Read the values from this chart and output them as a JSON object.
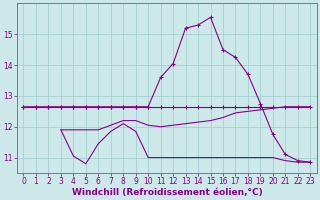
{
  "xlabel": "Windchill (Refroidissement éolien,°C)",
  "background_color": "#cce8e8",
  "line_color": "#880088",
  "grid_color": "#99cccc",
  "xlim": [
    -0.5,
    23.5
  ],
  "ylim": [
    10.5,
    16.0
  ],
  "yticks": [
    11,
    12,
    13,
    14,
    15
  ],
  "xticks": [
    0,
    1,
    2,
    3,
    4,
    5,
    6,
    7,
    8,
    9,
    10,
    11,
    12,
    13,
    14,
    15,
    16,
    17,
    18,
    19,
    20,
    21,
    22,
    23
  ],
  "line1_x": [
    0,
    1,
    2,
    3,
    4,
    5,
    6,
    7,
    8,
    9,
    10,
    11,
    12,
    13,
    14,
    15,
    16,
    17,
    18,
    19,
    20,
    21,
    22,
    23
  ],
  "line1_y": [
    12.65,
    12.65,
    12.65,
    12.65,
    12.65,
    12.65,
    12.65,
    12.65,
    12.65,
    12.65,
    12.65,
    12.65,
    12.65,
    12.65,
    12.65,
    12.65,
    12.65,
    12.65,
    12.65,
    12.65,
    12.65,
    12.65,
    12.65,
    12.65
  ],
  "line4_x": [
    0,
    1,
    2,
    3,
    4,
    5,
    6,
    7,
    8,
    9,
    10,
    11,
    12,
    13,
    14,
    15,
    16,
    17,
    18,
    19,
    20,
    21,
    22,
    23
  ],
  "line4_y": [
    12.65,
    12.65,
    12.65,
    12.65,
    12.65,
    12.65,
    12.65,
    12.65,
    12.65,
    12.65,
    12.65,
    13.6,
    14.05,
    15.2,
    15.3,
    15.55,
    14.5,
    14.25,
    13.7,
    12.75,
    11.75,
    11.1,
    10.9,
    10.85
  ],
  "line3_x": [
    3,
    4,
    5,
    6,
    7,
    8,
    9,
    10,
    11,
    12,
    13,
    14,
    15,
    16,
    17,
    18,
    19,
    20,
    21,
    22,
    23
  ],
  "line3_y": [
    11.9,
    11.9,
    11.9,
    11.9,
    12.05,
    12.2,
    12.2,
    12.05,
    12.0,
    12.05,
    12.1,
    12.15,
    12.2,
    12.3,
    12.45,
    12.5,
    12.55,
    12.6,
    12.65,
    12.65,
    12.65
  ],
  "line2_x": [
    3,
    4,
    5,
    6,
    7,
    8,
    9,
    10,
    11,
    12,
    13,
    14,
    15,
    16,
    17,
    18,
    19,
    20,
    21,
    22,
    23
  ],
  "line2_y": [
    11.9,
    11.05,
    10.8,
    11.45,
    11.85,
    12.1,
    11.85,
    11.0,
    11.0,
    11.0,
    11.0,
    11.0,
    11.0,
    11.0,
    11.0,
    11.0,
    11.0,
    11.0,
    10.9,
    10.85,
    10.85
  ],
  "tick_fontsize": 5.5,
  "xlabel_fontsize": 6.5
}
